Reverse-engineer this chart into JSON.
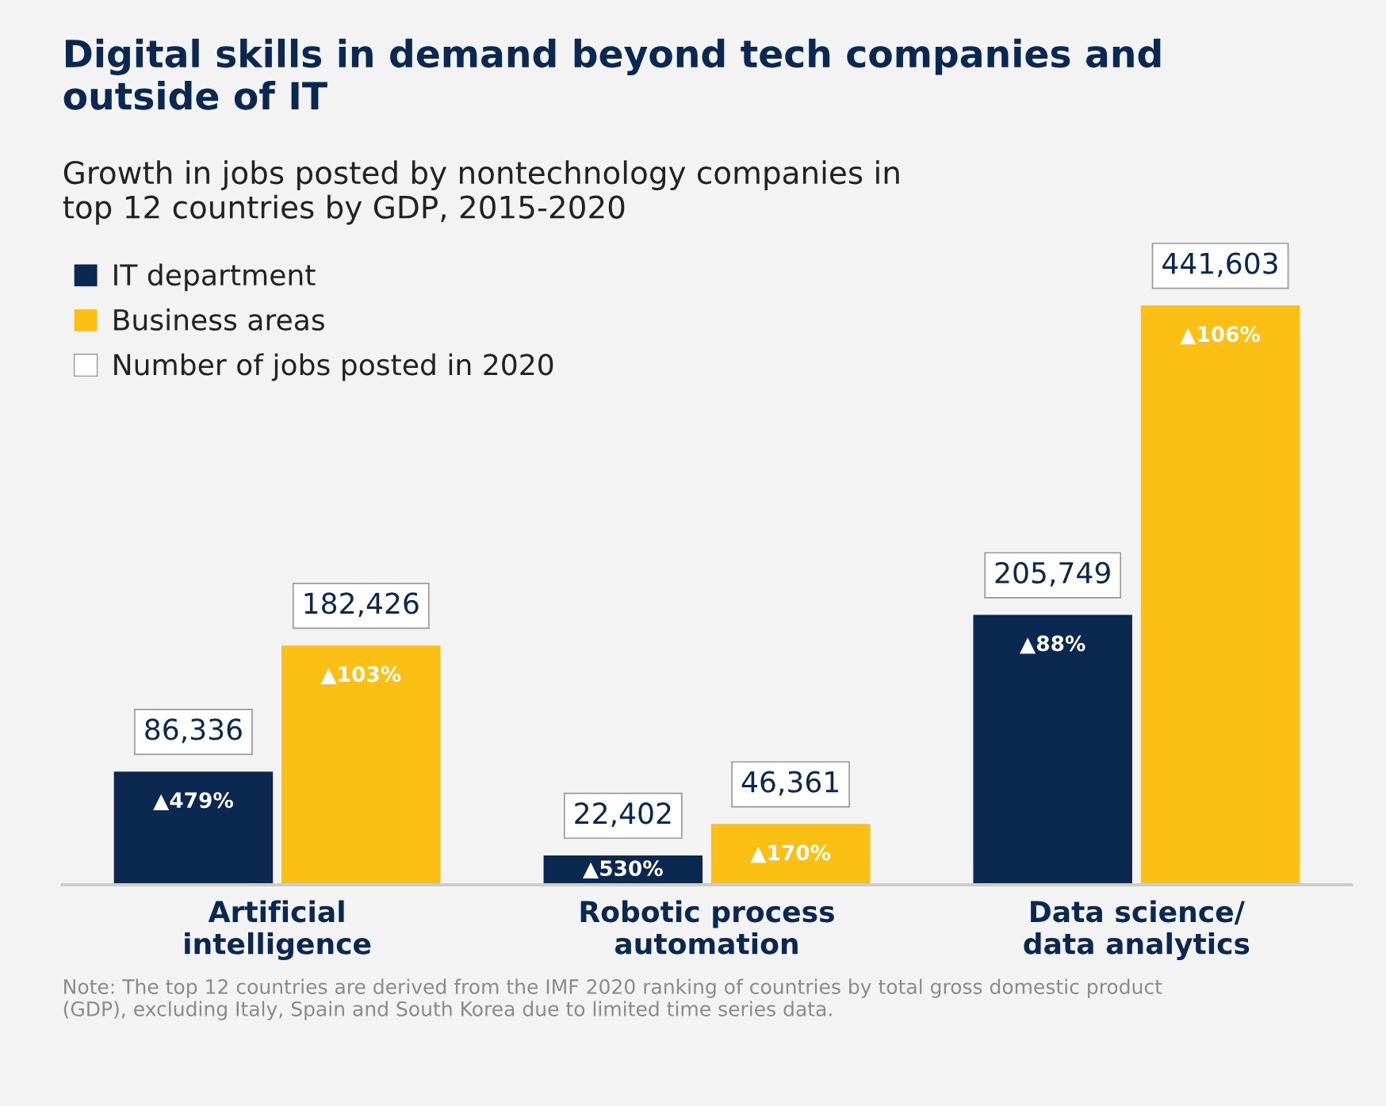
{
  "chart_data": {
    "type": "bar",
    "title": "Digital skills in demand beyond tech companies and\noutside of IT",
    "subtitle": "Growth in jobs posted by nontechnology companies in\ntop 12 countries by GDP, 2015-2020",
    "categories": [
      "Artificial\nintelligence",
      "Robotic process\nautomation",
      "Data science/\ndata analytics"
    ],
    "series": [
      {
        "name": "IT department",
        "color": "#0a2850",
        "values": [
          86336,
          22402,
          205749
        ],
        "value_labels": [
          "86,336",
          "22,402",
          "205,749"
        ]
      },
      {
        "name": "Business areas",
        "color": "#fcc015",
        "values": [
          182426,
          46361,
          441603
        ],
        "value_labels": [
          "182,426",
          "46,361",
          "441,603"
        ]
      }
    ],
    "tick_labels": "x",
    "grid": false,
    "legend": "top left",
    "annotations": [
      "Number of jobs posted in 2020",
      "▲479%",
      "▲103%",
      "▲530%",
      "▲170%",
      "▲88%",
      "▲106%",
      "Note: The top 12 countries are derived from the IMF 2020 ranking of countries by total gross domestic product\n(GDP), excluding Italy, Spain and South Korea due to limited time series data."
    ]
  }
}
